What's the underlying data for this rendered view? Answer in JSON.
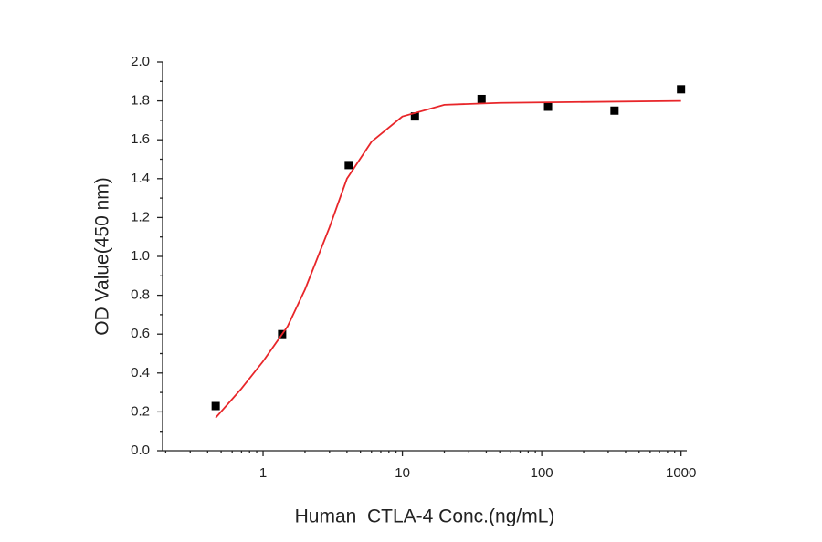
{
  "chart_data": {
    "type": "scatter",
    "xlabel": "Human  CTLA-4 Conc.(ng/mL)",
    "ylabel": "OD Value(450 nm)",
    "xscale": "log",
    "xlim": [
      0.19,
      1100
    ],
    "xticks": [
      1,
      10,
      100,
      1000
    ],
    "ylim": [
      0,
      2.0
    ],
    "yticks": [
      {
        "value": 0,
        "label": "0.0"
      },
      {
        "value": 0.2,
        "label": "0.2"
      },
      {
        "value": 0.4,
        "label": "0.4"
      },
      {
        "value": 0.6,
        "label": "0.6"
      },
      {
        "value": 0.8,
        "label": "0.8"
      },
      {
        "value": 1.0,
        "label": "1.0"
      },
      {
        "value": 1.2,
        "label": "1.2"
      },
      {
        "value": 1.4,
        "label": "1.4"
      },
      {
        "value": 1.6,
        "label": "1.6"
      },
      {
        "value": 1.8,
        "label": "1.8"
      },
      {
        "value": 2.0,
        "label": "2.0"
      }
    ],
    "grid": false,
    "series": [
      {
        "type": "scatter",
        "color": "#000000",
        "x": [
          0.457,
          1.37,
          4.12,
          12.3,
          37,
          111,
          333,
          1000
        ],
        "values": [
          0.23,
          0.6,
          1.47,
          1.72,
          1.81,
          1.77,
          1.75,
          1.86
        ]
      },
      {
        "type": "line",
        "color": "#e8262a",
        "x": [
          0.457,
          0.7,
          1,
          1.5,
          2,
          3,
          4,
          6,
          10,
          20,
          50,
          1000
        ],
        "values": [
          0.17,
          0.32,
          0.46,
          0.64,
          0.83,
          1.15,
          1.4,
          1.59,
          1.72,
          1.78,
          1.79,
          1.8
        ]
      }
    ]
  }
}
